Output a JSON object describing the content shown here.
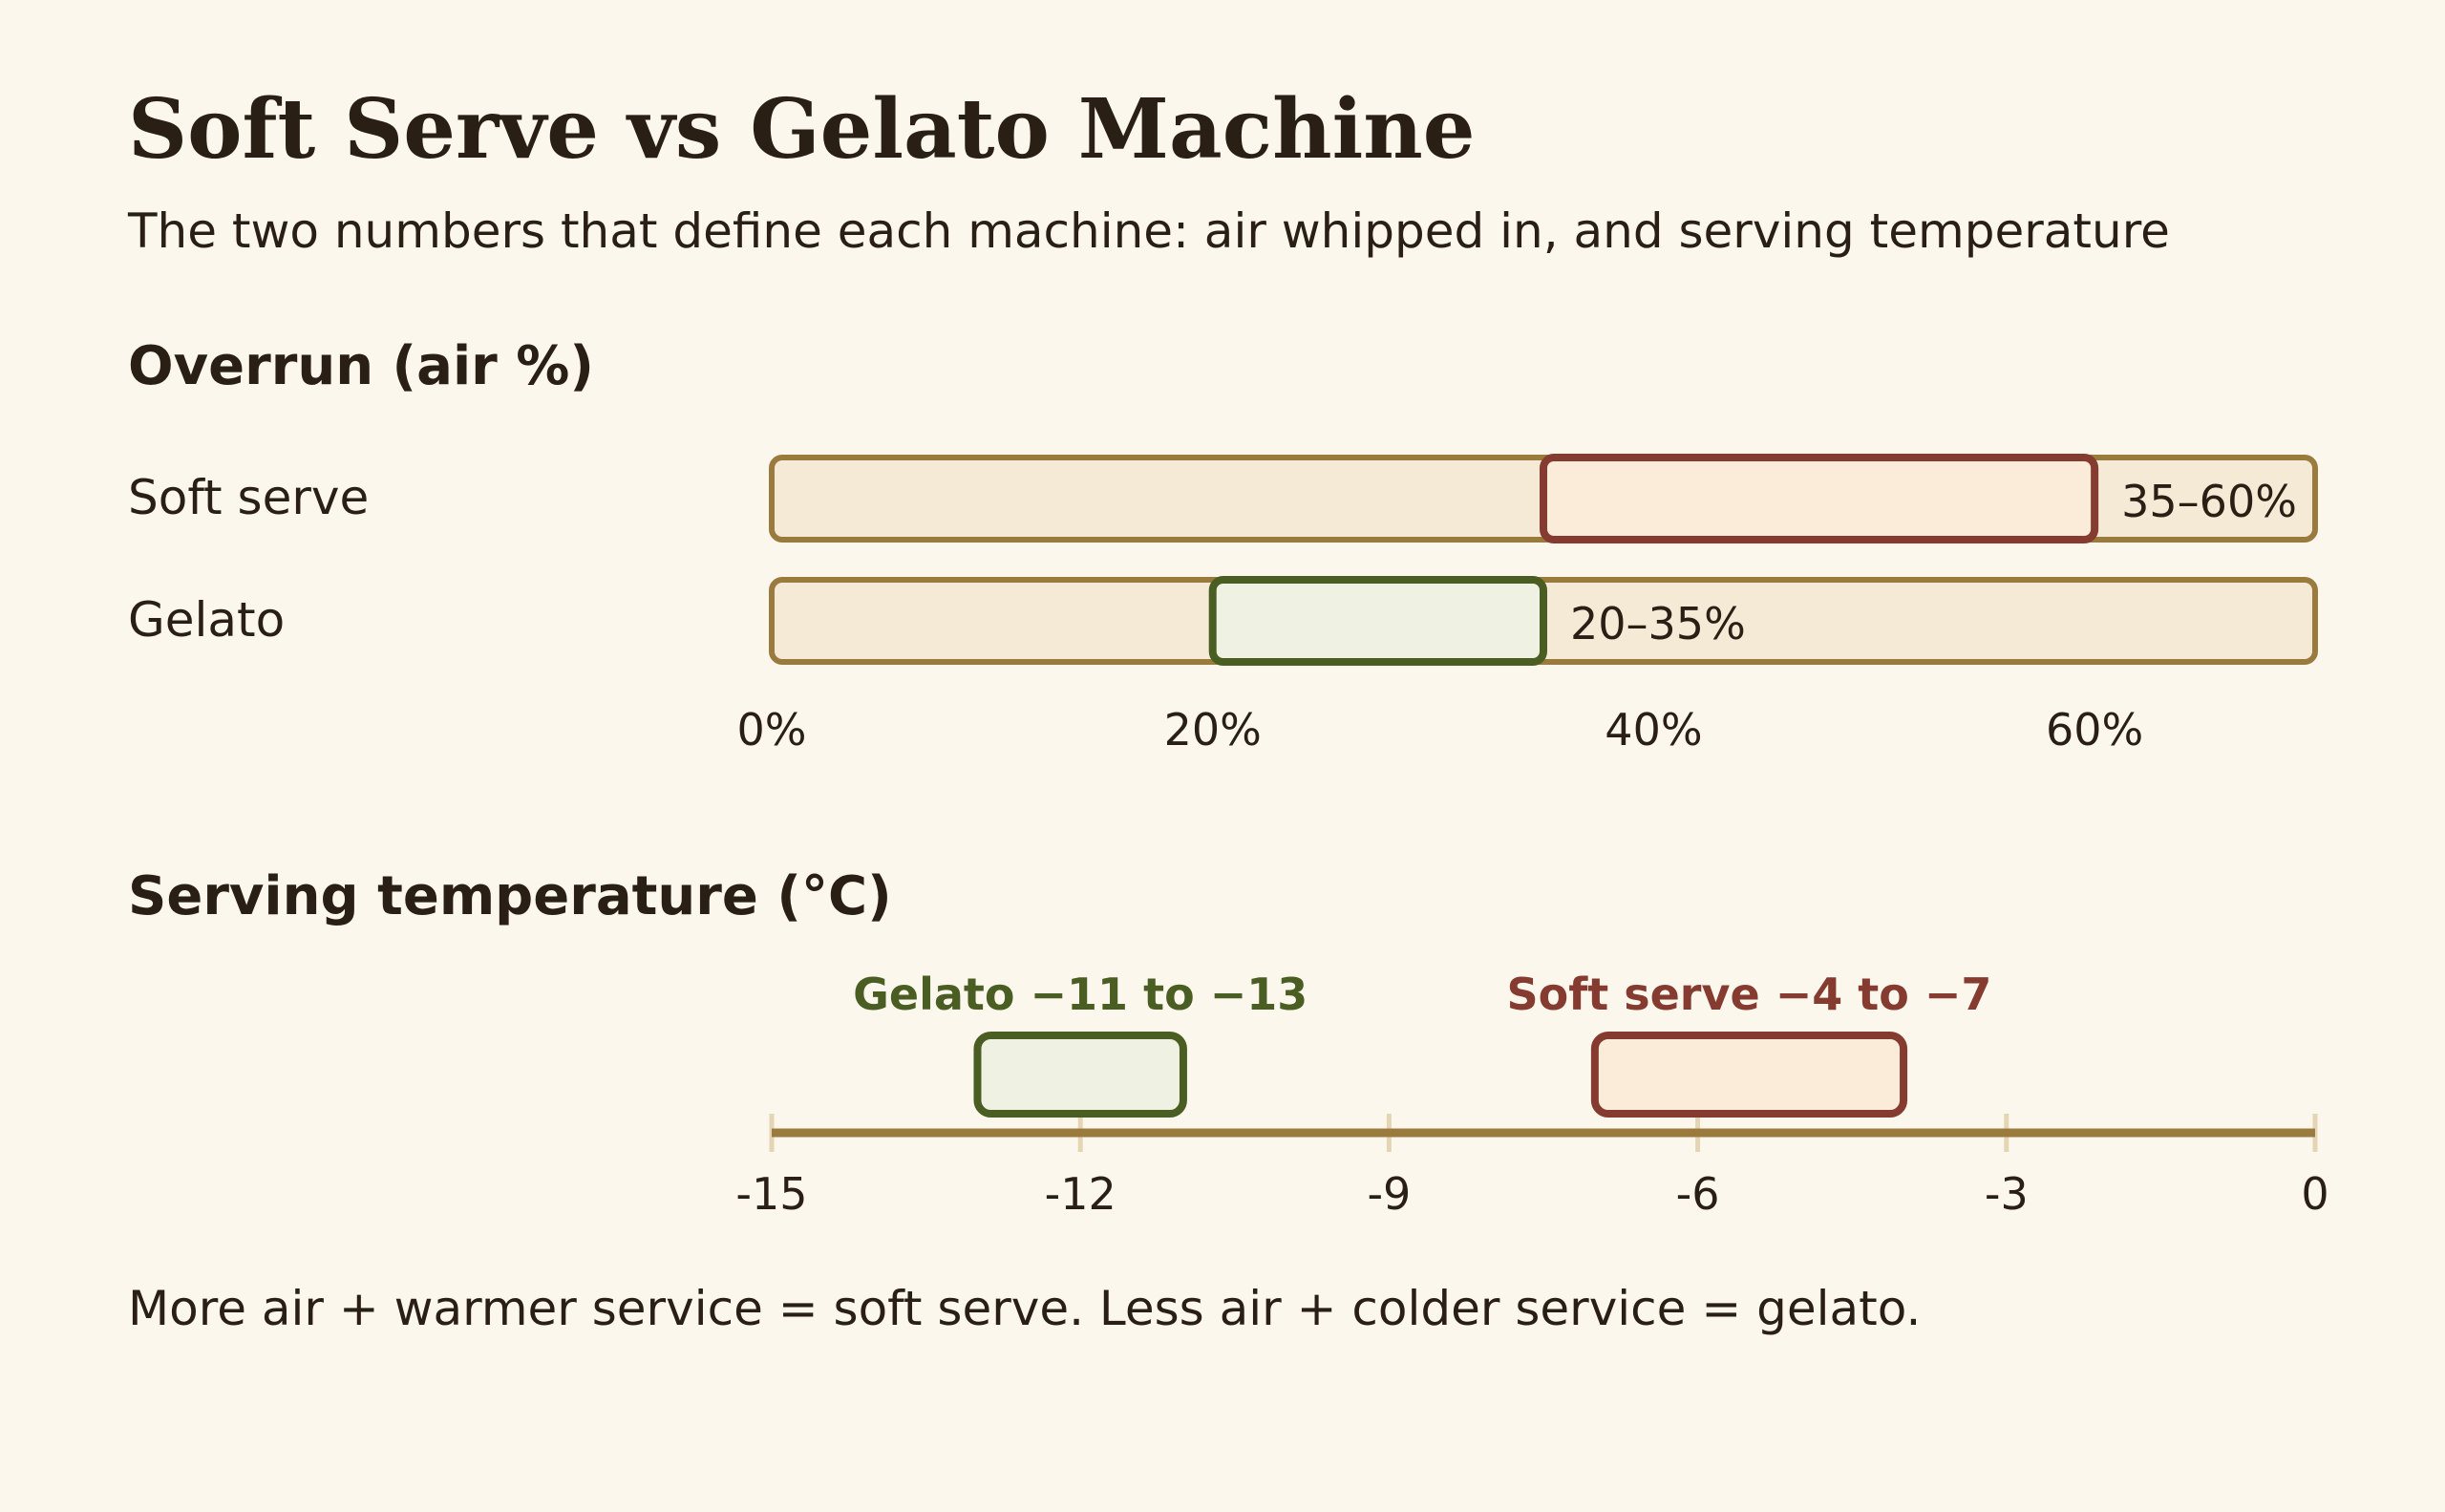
{
  "title": "Soft Serve vs Gelato Machine",
  "subtitle": "The two numbers that define each machine: air whipped in, and serving temperature",
  "footer": "More air + warmer service = soft serve. Less air + colder service = gelato.",
  "colors": {
    "background": "#fbf7ec",
    "text": "#2a1f14",
    "track_fill": "#f4ead6",
    "track_stroke": "#9b7a3e",
    "soft_serve": "#853b30",
    "soft_serve_fill": "#faecd8",
    "gelato": "#4a5e23",
    "gelato_fill": "#eff2e2",
    "tick": "#e4d6b4"
  },
  "chart_data": [
    {
      "type": "bar",
      "title": "Overrun (air %)",
      "categories": [
        "Soft serve",
        "Gelato"
      ],
      "series": [
        {
          "name": "Soft serve",
          "range": [
            35,
            60
          ],
          "label": "35–60%",
          "color_key": "soft_serve"
        },
        {
          "name": "Gelato",
          "range": [
            20,
            35
          ],
          "label": "20–35%",
          "color_key": "gelato"
        }
      ],
      "xlim": [
        0,
        70
      ],
      "ticks": [
        0,
        20,
        40,
        60
      ],
      "tick_labels": [
        "0%",
        "20%",
        "40%",
        "60%"
      ]
    },
    {
      "type": "bar",
      "title": "Serving temperature (°C)",
      "series": [
        {
          "name": "Gelato",
          "range": [
            -13,
            -11
          ],
          "label": "Gelato −11 to −13",
          "color_key": "gelato"
        },
        {
          "name": "Soft serve",
          "range": [
            -7,
            -4
          ],
          "label": "Soft serve −4 to −7",
          "color_key": "soft_serve"
        }
      ],
      "xlim": [
        -15,
        0
      ],
      "ticks": [
        -15,
        -12,
        -9,
        -6,
        -3,
        0
      ],
      "tick_labels": [
        "-15",
        "-12",
        "-9",
        "-6",
        "-3",
        "0"
      ]
    }
  ]
}
